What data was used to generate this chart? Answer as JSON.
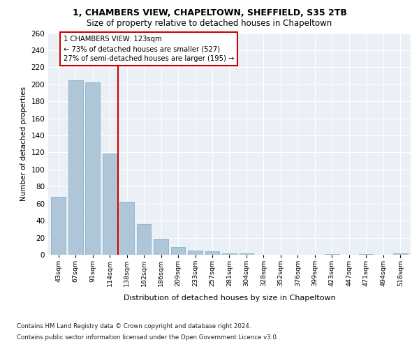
{
  "title1": "1, CHAMBERS VIEW, CHAPELTOWN, SHEFFIELD, S35 2TB",
  "title2": "Size of property relative to detached houses in Chapeltown",
  "xlabel": "Distribution of detached houses by size in Chapeltown",
  "ylabel": "Number of detached properties",
  "categories": [
    "43sqm",
    "67sqm",
    "91sqm",
    "114sqm",
    "138sqm",
    "162sqm",
    "186sqm",
    "209sqm",
    "233sqm",
    "257sqm",
    "281sqm",
    "304sqm",
    "328sqm",
    "352sqm",
    "376sqm",
    "399sqm",
    "423sqm",
    "447sqm",
    "471sqm",
    "494sqm",
    "518sqm"
  ],
  "values": [
    68,
    205,
    202,
    119,
    62,
    36,
    19,
    9,
    5,
    4,
    2,
    2,
    0,
    0,
    0,
    0,
    1,
    0,
    1,
    0,
    2
  ],
  "bar_color": "#aec6d8",
  "bar_edge_color": "#7aaabe",
  "vline_x": 3.5,
  "vline_color": "#cc0000",
  "annotation_title": "1 CHAMBERS VIEW: 123sqm",
  "annotation_line1": "← 73% of detached houses are smaller (527)",
  "annotation_line2": "27% of semi-detached houses are larger (195) →",
  "footnote1": "Contains HM Land Registry data © Crown copyright and database right 2024.",
  "footnote2": "Contains public sector information licensed under the Open Government Licence v3.0.",
  "ylim": [
    0,
    260
  ],
  "yticks": [
    0,
    20,
    40,
    60,
    80,
    100,
    120,
    140,
    160,
    180,
    200,
    220,
    240,
    260
  ],
  "bg_color": "#eaf0f6",
  "fig_bg": "#ffffff"
}
